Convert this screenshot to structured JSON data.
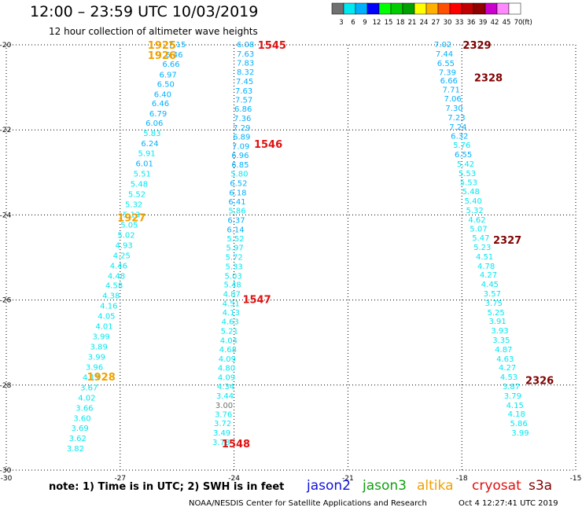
{
  "title": "12:00 – 23:59 UTC 10/03/2019",
  "subtitle": "12 hour collection of altimeter wave heights",
  "note": "note: 1) Time is in UTC; 2) SWH is in feet",
  "credit": "NOAA/NESDIS Center for Satellite Applications and Research",
  "generated": "Oct  4 12:27:41 UTC 2019",
  "satellites": [
    {
      "name": "jason2",
      "color": "#1010e0"
    },
    {
      "name": "jason3",
      "color": "#10a010"
    },
    {
      "name": "altika",
      "color": "#f0a000"
    },
    {
      "name": "cryosat",
      "color": "#e01010"
    },
    {
      "name": "s3a",
      "color": "#800000"
    }
  ],
  "colorbar": {
    "colors": [
      "#707070",
      "#00e8f0",
      "#00b0ff",
      "#0000ff",
      "#00ff00",
      "#00cc00",
      "#00a000",
      "#ffff00",
      "#ffb000",
      "#ff5000",
      "#ff0000",
      "#c00000",
      "#900000",
      "#cc00cc",
      "#ff88ff",
      "#ffffff"
    ],
    "labels": [
      "3",
      "6",
      "9",
      "12",
      "15",
      "18",
      "21",
      "24",
      "27",
      "30",
      "33",
      "36",
      "39",
      "42",
      "45",
      "70"
    ],
    "unit": "(ft)"
  },
  "chart_data": {
    "type": "scatter",
    "xlim": [
      -30,
      -15
    ],
    "ylim": [
      -30,
      -20
    ],
    "x_ticks": [
      "-30",
      "-27",
      "-24",
      "-21",
      "-18",
      "-15"
    ],
    "y_ticks": [
      "-20",
      "-22",
      "-24",
      "-26",
      "-28",
      "-30"
    ],
    "grid": true,
    "tracks": [
      {
        "satellite": "altika",
        "labels": [
          {
            "time": "1925",
            "x": -25.9,
            "y": -20.0
          },
          {
            "time": "1926",
            "x": -25.9,
            "y": -20.24
          },
          {
            "time": "1927",
            "x": -26.7,
            "y": -24.06
          },
          {
            "time": "1928",
            "x": -27.5,
            "y": -27.8
          }
        ],
        "points": [
          {
            "x": -25.5,
            "y": -20.0,
            "v": 7.15
          },
          {
            "x": -25.58,
            "y": -20.24,
            "v": 6.46
          },
          {
            "x": -25.66,
            "y": -20.46,
            "v": 6.66
          },
          {
            "x": -25.74,
            "y": -20.71,
            "v": 6.97
          },
          {
            "x": -25.8,
            "y": -20.93,
            "v": 6.5
          },
          {
            "x": -25.88,
            "y": -21.17,
            "v": 6.4
          },
          {
            "x": -25.94,
            "y": -21.39,
            "v": 6.46
          },
          {
            "x": -26.0,
            "y": -21.63,
            "v": 6.79
          },
          {
            "x": -26.1,
            "y": -21.85,
            "v": 6.06
          },
          {
            "x": -26.16,
            "y": -22.09,
            "v": 5.83
          },
          {
            "x": -26.22,
            "y": -22.33,
            "v": 6.24
          },
          {
            "x": -26.3,
            "y": -22.56,
            "v": 5.91
          },
          {
            "x": -26.36,
            "y": -22.8,
            "v": 6.01
          },
          {
            "x": -26.42,
            "y": -23.04,
            "v": 5.51
          },
          {
            "x": -26.5,
            "y": -23.28,
            "v": 5.48
          },
          {
            "x": -26.56,
            "y": -23.52,
            "v": 5.52
          },
          {
            "x": -26.64,
            "y": -23.76,
            "v": 5.32
          },
          {
            "x": -26.7,
            "y": -24.0,
            "v": 5.13
          },
          {
            "x": -26.76,
            "y": -24.24,
            "v": 5.05
          },
          {
            "x": -26.84,
            "y": -24.48,
            "v": 5.02
          },
          {
            "x": -26.9,
            "y": -24.72,
            "v": 4.93
          },
          {
            "x": -26.96,
            "y": -24.96,
            "v": 4.25
          },
          {
            "x": -27.04,
            "y": -25.2,
            "v": 4.46
          },
          {
            "x": -27.1,
            "y": -25.44,
            "v": 4.48
          },
          {
            "x": -27.16,
            "y": -25.67,
            "v": 4.58
          },
          {
            "x": -27.24,
            "y": -25.91,
            "v": 4.38
          },
          {
            "x": -27.3,
            "y": -26.15,
            "v": 4.16
          },
          {
            "x": -27.36,
            "y": -26.39,
            "v": 4.05
          },
          {
            "x": -27.42,
            "y": -26.63,
            "v": 4.01
          },
          {
            "x": -27.5,
            "y": -26.87,
            "v": 3.99
          },
          {
            "x": -27.56,
            "y": -27.11,
            "v": 3.89
          },
          {
            "x": -27.62,
            "y": -27.35,
            "v": 3.99
          },
          {
            "x": -27.68,
            "y": -27.59,
            "v": 3.96
          },
          {
            "x": -27.76,
            "y": -27.83,
            "v": 4.11
          },
          {
            "x": -27.82,
            "y": -28.07,
            "v": 3.67
          },
          {
            "x": -27.88,
            "y": -28.31,
            "v": 4.02
          },
          {
            "x": -27.94,
            "y": -28.55,
            "v": 3.66
          },
          {
            "x": -28.0,
            "y": -28.79,
            "v": 3.6
          },
          {
            "x": -28.06,
            "y": -29.02,
            "v": 3.69
          },
          {
            "x": -28.12,
            "y": -29.26,
            "v": 3.62
          },
          {
            "x": -28.18,
            "y": -29.5,
            "v": 3.82
          }
        ]
      },
      {
        "satellite": "cryosat",
        "labels": [
          {
            "time": "1545",
            "x": -23.0,
            "y": -20.0
          },
          {
            "time": "1546",
            "x": -23.1,
            "y": -22.33
          },
          {
            "time": "1547",
            "x": -23.4,
            "y": -25.98
          },
          {
            "time": "1548",
            "x": -23.95,
            "y": -29.37
          }
        ],
        "points": [
          {
            "x": -23.7,
            "y": -20.0,
            "v": 6.08
          },
          {
            "x": -23.7,
            "y": -20.22,
            "v": 7.63
          },
          {
            "x": -23.7,
            "y": -20.43,
            "v": 7.83
          },
          {
            "x": -23.7,
            "y": -20.65,
            "v": 8.32
          },
          {
            "x": -23.72,
            "y": -20.87,
            "v": 7.45
          },
          {
            "x": -23.74,
            "y": -21.09,
            "v": 7.63
          },
          {
            "x": -23.74,
            "y": -21.3,
            "v": 7.57
          },
          {
            "x": -23.76,
            "y": -21.52,
            "v": 6.86
          },
          {
            "x": -23.78,
            "y": -21.74,
            "v": 7.36
          },
          {
            "x": -23.8,
            "y": -21.96,
            "v": 7.29
          },
          {
            "x": -23.8,
            "y": -22.17,
            "v": 6.89
          },
          {
            "x": -23.82,
            "y": -22.39,
            "v": 7.09
          },
          {
            "x": -23.84,
            "y": -22.61,
            "v": 6.96
          },
          {
            "x": -23.84,
            "y": -22.83,
            "v": 6.85
          },
          {
            "x": -23.86,
            "y": -23.04,
            "v": 5.8
          },
          {
            "x": -23.88,
            "y": -23.26,
            "v": 6.52
          },
          {
            "x": -23.9,
            "y": -23.48,
            "v": 6.18
          },
          {
            "x": -23.92,
            "y": -23.7,
            "v": 6.41
          },
          {
            "x": -23.92,
            "y": -23.91,
            "v": 5.86
          },
          {
            "x": -23.94,
            "y": -24.13,
            "v": 6.37
          },
          {
            "x": -23.96,
            "y": -24.35,
            "v": 6.14
          },
          {
            "x": -23.96,
            "y": -24.57,
            "v": 5.52
          },
          {
            "x": -23.98,
            "y": -24.78,
            "v": 5.97
          },
          {
            "x": -24.0,
            "y": -25.0,
            "v": 5.72
          },
          {
            "x": -24.0,
            "y": -25.22,
            "v": 5.33
          },
          {
            "x": -24.02,
            "y": -25.44,
            "v": 5.03
          },
          {
            "x": -24.04,
            "y": -25.65,
            "v": 5.48
          },
          {
            "x": -24.06,
            "y": -25.87,
            "v": 4.87
          },
          {
            "x": -24.08,
            "y": -26.09,
            "v": 4.51
          },
          {
            "x": -24.08,
            "y": -26.3,
            "v": 4.13
          },
          {
            "x": -24.1,
            "y": -26.52,
            "v": 4.63
          },
          {
            "x": -24.12,
            "y": -26.74,
            "v": 5.21
          },
          {
            "x": -24.14,
            "y": -26.96,
            "v": 4.04
          },
          {
            "x": -24.16,
            "y": -27.17,
            "v": 4.68
          },
          {
            "x": -24.18,
            "y": -27.39,
            "v": 4.09
          },
          {
            "x": -24.2,
            "y": -27.61,
            "v": 4.8
          },
          {
            "x": -24.2,
            "y": -27.83,
            "v": 4.09
          },
          {
            "x": -24.22,
            "y": -28.04,
            "v": 4.34
          },
          {
            "x": -24.24,
            "y": -28.26,
            "v": 3.44
          },
          {
            "x": -24.26,
            "y": -28.48,
            "v": 3.0
          },
          {
            "x": -24.28,
            "y": -28.7,
            "v": 3.76
          },
          {
            "x": -24.3,
            "y": -28.91,
            "v": 3.72
          },
          {
            "x": -24.32,
            "y": -29.13,
            "v": 3.49
          },
          {
            "x": -24.34,
            "y": -29.35,
            "v": 3.78
          }
        ]
      },
      {
        "satellite": "s3a",
        "labels": [
          {
            "time": "2329",
            "x": -17.6,
            "y": -20.0
          },
          {
            "time": "2328",
            "x": -17.3,
            "y": -20.77
          },
          {
            "time": "2327",
            "x": -16.8,
            "y": -24.58
          },
          {
            "time": "2326",
            "x": -15.95,
            "y": -27.88
          }
        ],
        "points": [
          {
            "x": -18.5,
            "y": -20.0,
            "v": 7.02
          },
          {
            "x": -18.46,
            "y": -20.22,
            "v": 7.44
          },
          {
            "x": -18.42,
            "y": -20.44,
            "v": 6.55
          },
          {
            "x": -18.38,
            "y": -20.66,
            "v": 7.39
          },
          {
            "x": -18.34,
            "y": -20.85,
            "v": 6.66
          },
          {
            "x": -18.28,
            "y": -21.06,
            "v": 7.71
          },
          {
            "x": -18.24,
            "y": -21.28,
            "v": 7.06
          },
          {
            "x": -18.2,
            "y": -21.5,
            "v": 7.3
          },
          {
            "x": -18.14,
            "y": -21.72,
            "v": 7.23
          },
          {
            "x": -18.1,
            "y": -21.94,
            "v": 7.24
          },
          {
            "x": -18.06,
            "y": -22.15,
            "v": 6.32
          },
          {
            "x": -18.0,
            "y": -22.37,
            "v": 5.76
          },
          {
            "x": -17.96,
            "y": -22.59,
            "v": 6.55
          },
          {
            "x": -17.9,
            "y": -22.81,
            "v": 5.42
          },
          {
            "x": -17.86,
            "y": -23.03,
            "v": 5.53
          },
          {
            "x": -17.82,
            "y": -23.24,
            "v": 5.53
          },
          {
            "x": -17.76,
            "y": -23.46,
            "v": 5.48
          },
          {
            "x": -17.7,
            "y": -23.68,
            "v": 5.4
          },
          {
            "x": -17.66,
            "y": -23.9,
            "v": 5.32
          },
          {
            "x": -17.6,
            "y": -24.12,
            "v": 4.62
          },
          {
            "x": -17.56,
            "y": -24.33,
            "v": 5.07
          },
          {
            "x": -17.5,
            "y": -24.55,
            "v": 5.47
          },
          {
            "x": -17.46,
            "y": -24.77,
            "v": 5.23
          },
          {
            "x": -17.4,
            "y": -24.99,
            "v": 4.51
          },
          {
            "x": -17.36,
            "y": -25.21,
            "v": 4.78
          },
          {
            "x": -17.3,
            "y": -25.42,
            "v": 4.27
          },
          {
            "x": -17.26,
            "y": -25.64,
            "v": 4.45
          },
          {
            "x": -17.2,
            "y": -25.86,
            "v": 3.57
          },
          {
            "x": -17.16,
            "y": -26.08,
            "v": 3.75
          },
          {
            "x": -17.1,
            "y": -26.3,
            "v": 5.25
          },
          {
            "x": -17.06,
            "y": -26.51,
            "v": 3.91
          },
          {
            "x": -17.0,
            "y": -26.73,
            "v": 3.93
          },
          {
            "x": -16.96,
            "y": -26.95,
            "v": 3.35
          },
          {
            "x": -16.9,
            "y": -27.17,
            "v": 4.87
          },
          {
            "x": -16.86,
            "y": -27.39,
            "v": 4.63
          },
          {
            "x": -16.8,
            "y": -27.6,
            "v": 4.27
          },
          {
            "x": -16.76,
            "y": -27.82,
            "v": 4.53
          },
          {
            "x": -16.7,
            "y": -28.04,
            "v": 3.87
          },
          {
            "x": -16.66,
            "y": -28.26,
            "v": 3.79
          },
          {
            "x": -16.6,
            "y": -28.48,
            "v": 4.15
          },
          {
            "x": -16.56,
            "y": -28.69,
            "v": 4.18
          },
          {
            "x": -16.5,
            "y": -28.91,
            "v": 5.86
          },
          {
            "x": -16.46,
            "y": -29.13,
            "v": 3.99
          }
        ]
      }
    ]
  }
}
